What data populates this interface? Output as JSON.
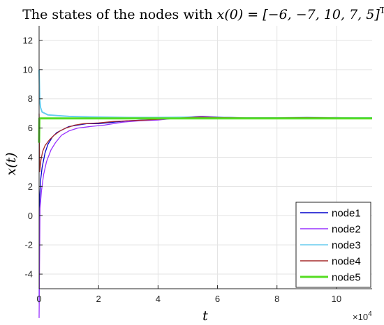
{
  "chart_data": {
    "type": "line",
    "title": "The states of the nodes with x(0) = [−6, −7, 10, 7, 5]ᵀ",
    "title_parts": {
      "prefix": "The states of the nodes with ",
      "math": "x(0) = [−6, −7, 10, 7, 5]",
      "superscript": "T"
    },
    "xlabel": "t",
    "ylabel": "x(t)",
    "x_multiplier": "×10",
    "x_multiplier_exp": "4",
    "xlim": [
      0,
      11.2
    ],
    "ylim": [
      -5,
      13
    ],
    "x_ticks": [
      0,
      2,
      4,
      6,
      8,
      10
    ],
    "x_tick_labels": [
      "0",
      "2",
      "4",
      "6",
      "8",
      "10"
    ],
    "y_ticks": [
      -4,
      -2,
      0,
      2,
      4,
      6,
      8,
      10,
      12
    ],
    "y_tick_labels": [
      "-4",
      "-2",
      "0",
      "2",
      "4",
      "6",
      "8",
      "10",
      "12"
    ],
    "grid": true,
    "legend_position": "bottom-right",
    "series": [
      {
        "name": "node1",
        "color": "#0000cc",
        "points": [
          [
            0,
            -6
          ],
          [
            0.02,
            1.2
          ],
          [
            0.05,
            2.4
          ],
          [
            0.1,
            3.3
          ],
          [
            0.2,
            4.3
          ],
          [
            0.3,
            4.9
          ],
          [
            0.45,
            5.4
          ],
          [
            0.6,
            5.7
          ],
          [
            0.8,
            5.9
          ],
          [
            1.0,
            6.1
          ],
          [
            1.3,
            6.2
          ],
          [
            1.6,
            6.3
          ],
          [
            2.0,
            6.3
          ],
          [
            2.5,
            6.4
          ],
          [
            3.0,
            6.5
          ],
          [
            3.5,
            6.55
          ],
          [
            4.0,
            6.6
          ],
          [
            4.5,
            6.7
          ],
          [
            5.0,
            6.75
          ],
          [
            5.5,
            6.8
          ],
          [
            6.0,
            6.75
          ],
          [
            7.0,
            6.7
          ],
          [
            8.0,
            6.7
          ],
          [
            9.0,
            6.7
          ],
          [
            10.0,
            6.72
          ],
          [
            11.2,
            6.68
          ]
        ]
      },
      {
        "name": "node2",
        "color": "#9933ff",
        "points": [
          [
            0,
            -7
          ],
          [
            0.03,
            0.5
          ],
          [
            0.08,
            1.7
          ],
          [
            0.15,
            2.8
          ],
          [
            0.25,
            3.7
          ],
          [
            0.4,
            4.5
          ],
          [
            0.55,
            5.0
          ],
          [
            0.75,
            5.5
          ],
          [
            1.0,
            5.8
          ],
          [
            1.3,
            6.0
          ],
          [
            1.7,
            6.1
          ],
          [
            2.2,
            6.2
          ],
          [
            2.8,
            6.4
          ],
          [
            3.4,
            6.5
          ],
          [
            4.0,
            6.55
          ],
          [
            4.5,
            6.65
          ],
          [
            5.0,
            6.7
          ],
          [
            5.5,
            6.78
          ],
          [
            6.0,
            6.74
          ],
          [
            7.0,
            6.7
          ],
          [
            8.0,
            6.68
          ],
          [
            9.0,
            6.7
          ],
          [
            10.0,
            6.7
          ],
          [
            11.2,
            6.66
          ]
        ]
      },
      {
        "name": "node3",
        "color": "#66ccee",
        "points": [
          [
            0,
            10
          ],
          [
            0.02,
            8.0
          ],
          [
            0.05,
            7.4
          ],
          [
            0.1,
            7.1
          ],
          [
            0.3,
            6.9
          ],
          [
            0.6,
            6.85
          ],
          [
            1.0,
            6.8
          ],
          [
            2.0,
            6.75
          ],
          [
            3.0,
            6.72
          ],
          [
            4.0,
            6.72
          ],
          [
            5.0,
            6.74
          ],
          [
            6.0,
            6.72
          ],
          [
            7.0,
            6.7
          ],
          [
            8.0,
            6.7
          ],
          [
            9.0,
            6.72
          ],
          [
            10.0,
            6.7
          ],
          [
            11.2,
            6.7
          ]
        ]
      },
      {
        "name": "node4",
        "color": "#a52a2a",
        "points": [
          [
            0,
            7
          ],
          [
            0.02,
            3.0
          ],
          [
            0.06,
            3.8
          ],
          [
            0.12,
            4.4
          ],
          [
            0.2,
            4.8
          ],
          [
            0.35,
            5.2
          ],
          [
            0.5,
            5.5
          ],
          [
            0.7,
            5.8
          ],
          [
            0.9,
            6.0
          ],
          [
            1.2,
            6.2
          ],
          [
            1.5,
            6.3
          ],
          [
            2.0,
            6.35
          ],
          [
            2.5,
            6.45
          ],
          [
            3.0,
            6.5
          ],
          [
            3.6,
            6.55
          ],
          [
            4.2,
            6.62
          ],
          [
            4.8,
            6.7
          ],
          [
            5.4,
            6.75
          ],
          [
            6.0,
            6.72
          ],
          [
            7.0,
            6.7
          ],
          [
            8.0,
            6.7
          ],
          [
            9.0,
            6.72
          ],
          [
            10.0,
            6.7
          ],
          [
            11.2,
            6.68
          ]
        ]
      },
      {
        "name": "node5",
        "color": "#55dd22",
        "points": [
          [
            0,
            5
          ],
          [
            0.01,
            6.66
          ],
          [
            11.2,
            6.66
          ]
        ]
      }
    ]
  }
}
